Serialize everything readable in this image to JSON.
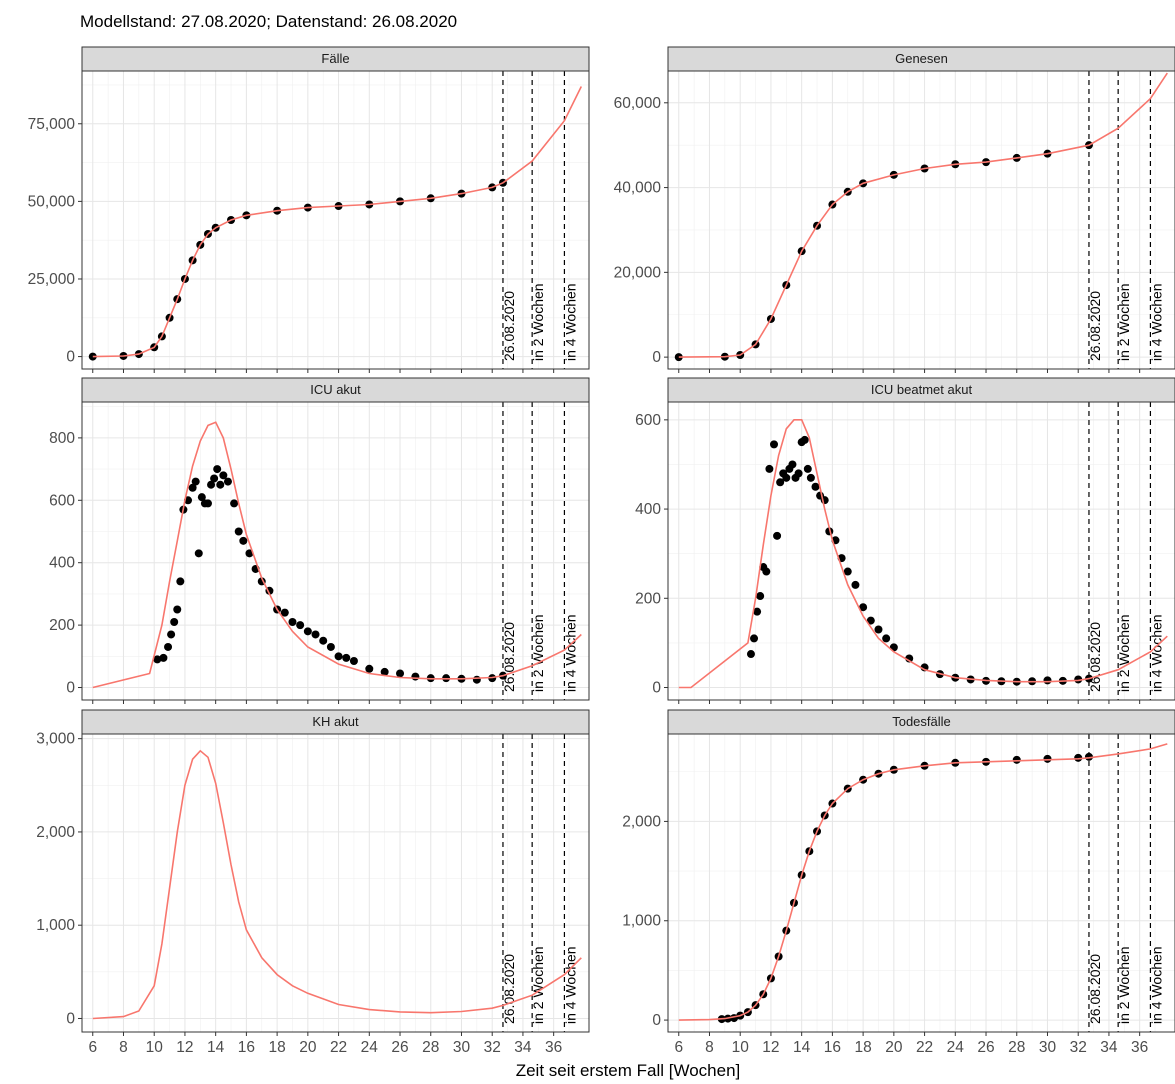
{
  "figure": {
    "title": "Modellstand: 27.08.2020; Datenstand: 26.08.2020",
    "xlabel": "Zeit seit erstem Fall [Wochen]"
  },
  "chart_data": [
    {
      "type": "line",
      "panel_title": "Fälle",
      "xlim": [
        5.3,
        38.3
      ],
      "ylim": [
        -4000,
        92000
      ],
      "x_ticks": [
        6,
        8,
        10,
        12,
        14,
        16,
        18,
        20,
        22,
        24,
        26,
        28,
        30,
        32,
        34,
        36
      ],
      "y_ticks": [
        0,
        25000,
        50000,
        75000
      ],
      "y_tick_labels": [
        "0",
        "25,000",
        "50,000",
        "75,000"
      ],
      "vlines": [
        {
          "x": 32.7,
          "label": "26.08.2020"
        },
        {
          "x": 34.6,
          "label": "in 2 Wochen"
        },
        {
          "x": 36.7,
          "label": "in 4 Wochen"
        }
      ],
      "model": {
        "x": [
          6,
          8,
          9,
          10,
          10.5,
          11,
          11.5,
          12,
          12.5,
          13,
          13.5,
          14,
          15,
          16,
          18,
          20,
          22,
          24,
          26,
          28,
          30,
          32,
          32.7,
          34.6,
          36.7,
          37.8
        ],
        "y": [
          0,
          200,
          800,
          3000,
          6500,
          12500,
          18500,
          25000,
          31000,
          36000,
          39500,
          41500,
          44000,
          45500,
          47000,
          48000,
          48500,
          49000,
          50000,
          51000,
          52500,
          54500,
          56000,
          63000,
          76000,
          87000
        ]
      },
      "observed": {
        "x": [
          6,
          8,
          9,
          10,
          10.5,
          11,
          11.5,
          12,
          12.5,
          13,
          13.5,
          14,
          15,
          16,
          18,
          20,
          22,
          24,
          26,
          28,
          30,
          32,
          32.7
        ],
        "y": [
          0,
          200,
          800,
          3000,
          6500,
          12500,
          18500,
          25000,
          31000,
          36000,
          39500,
          41500,
          44000,
          45500,
          47000,
          48000,
          48500,
          49000,
          50000,
          51000,
          52500,
          54500,
          56000
        ]
      }
    },
    {
      "type": "line",
      "panel_title": "Genesen",
      "xlim": [
        5.3,
        38.3
      ],
      "ylim": [
        -2800,
        67500
      ],
      "x_ticks": [
        6,
        8,
        10,
        12,
        14,
        16,
        18,
        20,
        22,
        24,
        26,
        28,
        30,
        32,
        34,
        36
      ],
      "y_ticks": [
        0,
        20000,
        40000,
        60000
      ],
      "y_tick_labels": [
        "0",
        "20,000",
        "40,000",
        "60,000"
      ],
      "vlines": [
        {
          "x": 32.7,
          "label": "26.08.2020"
        },
        {
          "x": 34.6,
          "label": "in 2 Wochen"
        },
        {
          "x": 36.7,
          "label": "in 4 Wochen"
        }
      ],
      "model": {
        "x": [
          6,
          9,
          10,
          11,
          12,
          13,
          14,
          15,
          16,
          17,
          18,
          20,
          22,
          24,
          26,
          28,
          30,
          32.7,
          34.6,
          36.7,
          37.8
        ],
        "y": [
          0,
          100,
          500,
          3000,
          9000,
          17000,
          25000,
          31000,
          36000,
          39000,
          41000,
          43000,
          44500,
          45500,
          46000,
          47000,
          48000,
          50000,
          54000,
          61000,
          67000
        ]
      },
      "observed": {
        "x": [
          6,
          9,
          10,
          11,
          12,
          13,
          14,
          15,
          16,
          17,
          18,
          20,
          22,
          24,
          26,
          28,
          30,
          32.7
        ],
        "y": [
          0,
          100,
          500,
          3000,
          9000,
          17000,
          25000,
          31000,
          36000,
          39000,
          41000,
          43000,
          44500,
          45500,
          46000,
          47000,
          48000,
          50000
        ]
      }
    },
    {
      "type": "line",
      "panel_title": "ICU akut",
      "xlim": [
        5.3,
        38.3
      ],
      "ylim": [
        -40,
        915
      ],
      "x_ticks": [
        6,
        8,
        10,
        12,
        14,
        16,
        18,
        20,
        22,
        24,
        26,
        28,
        30,
        32,
        34,
        36
      ],
      "y_ticks": [
        0,
        200,
        400,
        600,
        800
      ],
      "y_tick_labels": [
        "0",
        "200",
        "400",
        "600",
        "800"
      ],
      "vlines": [
        {
          "x": 32.7,
          "label": "26.08.2020"
        },
        {
          "x": 34.6,
          "label": "in 2 Wochen"
        },
        {
          "x": 36.7,
          "label": "in 4 Wochen"
        }
      ],
      "model": {
        "x": [
          6,
          9.7,
          10.5,
          11,
          11.5,
          12,
          12.5,
          13,
          13.5,
          14,
          14.5,
          15,
          15.5,
          16,
          17,
          18,
          19,
          20,
          22,
          24,
          26,
          28,
          30,
          32,
          32.7,
          34.6,
          36.7,
          37.8
        ],
        "y": [
          0,
          45,
          200,
          340,
          470,
          600,
          710,
          790,
          840,
          850,
          800,
          700,
          590,
          490,
          350,
          250,
          180,
          130,
          75,
          45,
          32,
          28,
          28,
          32,
          38,
          70,
          120,
          170
        ]
      },
      "observed": {
        "x": [
          10.2,
          10.6,
          10.9,
          11.1,
          11.3,
          11.5,
          11.7,
          11.9,
          12.2,
          12.5,
          12.7,
          12.9,
          13.1,
          13.3,
          13.5,
          13.7,
          13.9,
          14.1,
          14.3,
          14.5,
          14.8,
          15.2,
          15.5,
          15.8,
          16.2,
          16.6,
          17.0,
          17.5,
          18.0,
          18.5,
          19.0,
          19.5,
          20.0,
          20.5,
          21.0,
          21.5,
          22.0,
          22.5,
          23.0,
          24.0,
          25.0,
          26.0,
          27.0,
          28.0,
          29.0,
          30.0,
          31.0,
          32.0,
          32.7
        ],
        "y": [
          90,
          95,
          130,
          170,
          210,
          250,
          340,
          570,
          600,
          640,
          660,
          430,
          610,
          590,
          590,
          650,
          670,
          700,
          650,
          680,
          660,
          590,
          500,
          470,
          430,
          380,
          340,
          310,
          250,
          240,
          210,
          200,
          180,
          170,
          150,
          130,
          100,
          95,
          85,
          60,
          50,
          45,
          35,
          30,
          30,
          28,
          25,
          30,
          38
        ]
      }
    },
    {
      "type": "line",
      "panel_title": "ICU beatmet akut",
      "xlim": [
        5.3,
        38.3
      ],
      "ylim": [
        -28,
        640
      ],
      "x_ticks": [
        6,
        8,
        10,
        12,
        14,
        16,
        18,
        20,
        22,
        24,
        26,
        28,
        30,
        32,
        34,
        36
      ],
      "y_ticks": [
        0,
        200,
        400,
        600
      ],
      "y_tick_labels": [
        "0",
        "200",
        "400",
        "600"
      ],
      "vlines": [
        {
          "x": 32.7,
          "label": "26.08.2020"
        },
        {
          "x": 34.6,
          "label": "in 2 Wochen"
        },
        {
          "x": 36.7,
          "label": "in 4 Wochen"
        }
      ],
      "model": {
        "x": [
          6,
          6.8,
          10.5,
          11,
          11.5,
          12,
          12.5,
          13,
          13.5,
          14,
          14.5,
          15,
          15.5,
          16,
          17,
          18,
          19,
          20,
          22,
          24,
          26,
          28,
          30,
          32,
          32.7,
          34.6,
          36.7,
          37.8
        ],
        "y": [
          0,
          0,
          100,
          200,
          320,
          430,
          520,
          580,
          600,
          600,
          560,
          480,
          400,
          330,
          230,
          160,
          110,
          80,
          40,
          22,
          16,
          13,
          13,
          16,
          20,
          40,
          80,
          115
        ]
      },
      "observed": {
        "x": [
          10.7,
          10.9,
          11.1,
          11.3,
          11.5,
          11.7,
          11.9,
          12.2,
          12.4,
          12.6,
          12.8,
          13.0,
          13.2,
          13.4,
          13.6,
          13.8,
          14.0,
          14.2,
          14.4,
          14.6,
          14.9,
          15.2,
          15.5,
          15.8,
          16.2,
          16.6,
          17.0,
          17.5,
          18.0,
          18.5,
          19.0,
          19.5,
          20.0,
          21.0,
          22.0,
          23.0,
          24.0,
          25.0,
          26.0,
          27.0,
          28.0,
          29.0,
          30.0,
          31.0,
          32.0,
          32.7
        ],
        "y": [
          75,
          110,
          170,
          205,
          270,
          260,
          490,
          545,
          340,
          460,
          480,
          470,
          490,
          500,
          470,
          480,
          550,
          555,
          490,
          470,
          450,
          430,
          420,
          350,
          330,
          290,
          260,
          230,
          180,
          150,
          130,
          110,
          90,
          65,
          45,
          30,
          22,
          18,
          15,
          14,
          13,
          14,
          16,
          15,
          18,
          20
        ]
      }
    },
    {
      "type": "line",
      "panel_title": "KH akut",
      "xlim": [
        5.3,
        38.3
      ],
      "ylim": [
        -145,
        3050
      ],
      "x_ticks": [
        6,
        8,
        10,
        12,
        14,
        16,
        18,
        20,
        22,
        24,
        26,
        28,
        30,
        32,
        34,
        36
      ],
      "y_ticks": [
        0,
        1000,
        2000,
        3000
      ],
      "y_tick_labels": [
        "0",
        "1,000",
        "2,000",
        "3,000"
      ],
      "vlines": [
        {
          "x": 32.7,
          "label": "26.08.2020"
        },
        {
          "x": 34.6,
          "label": "in 2 Wochen"
        },
        {
          "x": 36.7,
          "label": "in 4 Wochen"
        }
      ],
      "model": {
        "x": [
          6,
          8,
          9,
          10,
          10.5,
          11,
          11.5,
          12,
          12.5,
          13,
          13.5,
          14,
          14.5,
          15,
          15.5,
          16,
          17,
          18,
          19,
          20,
          22,
          24,
          26,
          28,
          30,
          32,
          32.7,
          34.6,
          36.7,
          37.8
        ],
        "y": [
          0,
          20,
          80,
          350,
          800,
          1400,
          2000,
          2500,
          2780,
          2870,
          2800,
          2520,
          2100,
          1650,
          1250,
          950,
          650,
          470,
          350,
          270,
          150,
          95,
          70,
          62,
          75,
          110,
          140,
          250,
          470,
          650
        ]
      },
      "observed": null
    },
    {
      "type": "line",
      "panel_title": "Todesfälle",
      "xlim": [
        5.3,
        38.3
      ],
      "ylim": [
        -120,
        2880
      ],
      "x_ticks": [
        6,
        8,
        10,
        12,
        14,
        16,
        18,
        20,
        22,
        24,
        26,
        28,
        30,
        32,
        34,
        36
      ],
      "y_ticks": [
        0,
        1000,
        2000
      ],
      "y_tick_labels": [
        "0",
        "1,000",
        "2,000"
      ],
      "vlines": [
        {
          "x": 32.7,
          "label": "26.08.2020"
        },
        {
          "x": 34.6,
          "label": "in 2 Wochen"
        },
        {
          "x": 36.7,
          "label": "in 4 Wochen"
        }
      ],
      "model": {
        "x": [
          6,
          8,
          9,
          10,
          10.5,
          11,
          11.5,
          12,
          12.5,
          13,
          13.5,
          14,
          14.5,
          15,
          15.5,
          16,
          17,
          18,
          19,
          20,
          22,
          24,
          26,
          28,
          30,
          32,
          32.7,
          34.6,
          36.7,
          37.8
        ],
        "y": [
          0,
          5,
          15,
          45,
          80,
          150,
          260,
          420,
          640,
          900,
          1180,
          1460,
          1700,
          1900,
          2060,
          2180,
          2330,
          2420,
          2480,
          2520,
          2560,
          2590,
          2600,
          2610,
          2620,
          2630,
          2640,
          2680,
          2730,
          2780
        ]
      },
      "observed": {
        "x": [
          8.8,
          9.2,
          9.6,
          10,
          10.5,
          11,
          11.5,
          12,
          12.5,
          13,
          13.5,
          14,
          14.5,
          15,
          15.5,
          16,
          17,
          18,
          19,
          20,
          22,
          24,
          26,
          28,
          30,
          32,
          32.7
        ],
        "y": [
          10,
          15,
          20,
          45,
          80,
          150,
          260,
          420,
          640,
          900,
          1180,
          1460,
          1700,
          1900,
          2060,
          2180,
          2330,
          2420,
          2480,
          2520,
          2560,
          2590,
          2600,
          2620,
          2630,
          2640,
          2650
        ]
      }
    }
  ]
}
